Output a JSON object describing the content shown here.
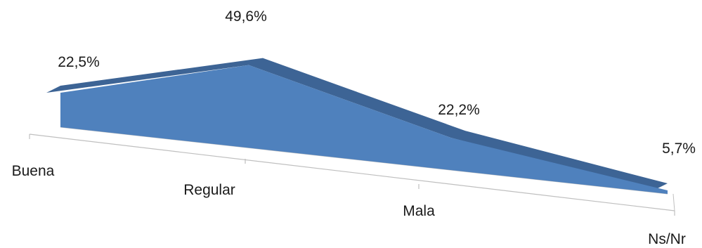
{
  "chart_data": {
    "type": "area",
    "style": "3d",
    "categories": [
      "Buena",
      "Regular",
      "Mala",
      "Ns/Nr"
    ],
    "values": [
      22.5,
      49.6,
      22.2,
      5.7
    ],
    "value_labels": [
      "22,5%",
      "49,6%",
      "22,2%",
      "5,7%"
    ],
    "unit": "%",
    "title": "",
    "xlabel": "",
    "ylabel": "",
    "ylim": [
      0,
      50
    ],
    "grid": false,
    "legend": "none",
    "colors": {
      "front": "#4f81bd",
      "top": "#3d6495",
      "floor_line": "#bfbfbf"
    }
  }
}
